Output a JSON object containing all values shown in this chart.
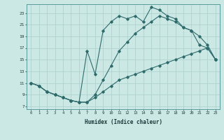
{
  "xlabel": "Humidex (Indice chaleur)",
  "bg_color": "#cce8e5",
  "line_color": "#2d6b6b",
  "grid_color": "#aacfcc",
  "xlim": [
    -0.5,
    23.5
  ],
  "ylim": [
    6.5,
    24.5
  ],
  "xticks": [
    0,
    1,
    2,
    3,
    4,
    5,
    6,
    7,
    8,
    9,
    10,
    11,
    12,
    13,
    14,
    15,
    16,
    17,
    18,
    19,
    20,
    21,
    22,
    23
  ],
  "yticks": [
    7,
    9,
    11,
    13,
    15,
    17,
    19,
    21,
    23
  ],
  "line1_x": [
    0,
    1,
    2,
    3,
    4,
    5,
    6,
    7,
    8,
    9,
    10,
    11,
    12,
    13,
    14,
    15,
    16,
    17,
    18,
    19,
    20,
    21,
    22,
    23
  ],
  "line1_y": [
    11,
    10.5,
    9.5,
    9.0,
    8.5,
    8.0,
    7.7,
    7.7,
    8.5,
    9.5,
    10.5,
    11.5,
    12.0,
    12.5,
    13.0,
    13.5,
    14.0,
    14.5,
    15.0,
    15.5,
    16.0,
    16.5,
    17.0,
    15.0
  ],
  "line2_x": [
    0,
    1,
    2,
    3,
    4,
    5,
    6,
    7,
    8,
    9,
    10,
    11,
    12,
    13,
    14,
    15,
    16,
    17,
    18,
    19,
    20,
    21,
    22,
    23
  ],
  "line2_y": [
    11,
    10.5,
    9.5,
    9.0,
    8.5,
    8.0,
    7.7,
    7.7,
    9.0,
    11.5,
    14.0,
    16.5,
    18.0,
    19.5,
    20.5,
    21.5,
    22.5,
    22.0,
    21.5,
    20.5,
    20.0,
    19.0,
    17.5,
    15.0
  ],
  "line3_x": [
    0,
    1,
    2,
    3,
    4,
    5,
    6,
    7,
    8,
    9,
    10,
    11,
    12,
    13,
    14,
    15,
    16,
    17,
    18,
    19,
    20,
    21,
    22,
    23
  ],
  "line3_y": [
    11,
    10.5,
    9.5,
    9.0,
    8.5,
    8.0,
    7.7,
    16.5,
    12.5,
    20.0,
    21.5,
    22.5,
    22.0,
    22.5,
    21.5,
    24.0,
    23.5,
    22.5,
    22.0,
    20.5,
    20.0,
    17.5,
    17.0,
    15.0
  ]
}
